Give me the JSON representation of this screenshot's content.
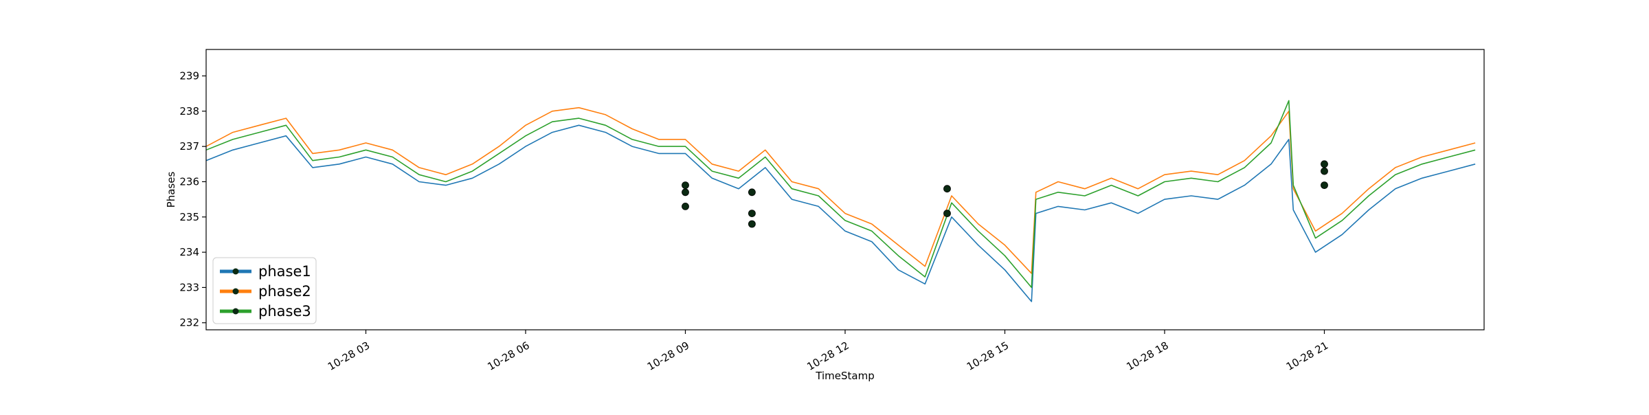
{
  "chart_data": {
    "type": "line",
    "xlabel": "TimeStamp",
    "ylabel": "Phases",
    "x_start": "10-28 00:00",
    "x_end": "10-28 24:00",
    "x_ticks": [
      {
        "t": "10-28 03:00",
        "label": "10-28 03"
      },
      {
        "t": "10-28 06:00",
        "label": "10-28 06"
      },
      {
        "t": "10-28 09:00",
        "label": "10-28 09"
      },
      {
        "t": "10-28 12:00",
        "label": "10-28 12"
      },
      {
        "t": "10-28 15:00",
        "label": "10-28 15"
      },
      {
        "t": "10-28 18:00",
        "label": "10-28 18"
      },
      {
        "t": "10-28 21:00",
        "label": "10-28 21"
      }
    ],
    "ylim": [
      231.8,
      239.75
    ],
    "y_ticks": [
      232,
      233,
      234,
      235,
      236,
      237,
      238,
      239
    ],
    "grid": false,
    "legend_position": "lower-left",
    "series": [
      {
        "name": "phase1",
        "color": "#1f77b4",
        "points": [
          [
            "10-28 00:00",
            236.6
          ],
          [
            "10-28 00:30",
            236.9
          ],
          [
            "10-28 01:00",
            237.1
          ],
          [
            "10-28 01:30",
            237.3
          ],
          [
            "10-28 02:00",
            236.4
          ],
          [
            "10-28 02:30",
            236.5
          ],
          [
            "10-28 03:00",
            236.7
          ],
          [
            "10-28 03:30",
            236.5
          ],
          [
            "10-28 04:00",
            236.0
          ],
          [
            "10-28 04:30",
            235.9
          ],
          [
            "10-28 05:00",
            236.1
          ],
          [
            "10-28 05:30",
            236.5
          ],
          [
            "10-28 06:00",
            237.0
          ],
          [
            "10-28 06:30",
            237.4
          ],
          [
            "10-28 07:00",
            237.6
          ],
          [
            "10-28 07:30",
            237.4
          ],
          [
            "10-28 08:00",
            237.0
          ],
          [
            "10-28 08:30",
            236.8
          ],
          [
            "10-28 09:00",
            236.8
          ],
          [
            "10-28 09:30",
            236.1
          ],
          [
            "10-28 10:00",
            235.8
          ],
          [
            "10-28 10:30",
            236.4
          ],
          [
            "10-28 11:00",
            235.5
          ],
          [
            "10-28 11:30",
            235.3
          ],
          [
            "10-28 12:00",
            234.6
          ],
          [
            "10-28 12:30",
            234.3
          ],
          [
            "10-28 13:00",
            233.5
          ],
          [
            "10-28 13:30",
            233.1
          ],
          [
            "10-28 14:00",
            235.0
          ],
          [
            "10-28 14:30",
            234.2
          ],
          [
            "10-28 15:00",
            233.5
          ],
          [
            "10-28 15:30",
            232.6
          ],
          [
            "10-28 15:35",
            235.1
          ],
          [
            "10-28 16:00",
            235.3
          ],
          [
            "10-28 16:30",
            235.2
          ],
          [
            "10-28 17:00",
            235.4
          ],
          [
            "10-28 17:30",
            235.1
          ],
          [
            "10-28 18:00",
            235.5
          ],
          [
            "10-28 18:30",
            235.6
          ],
          [
            "10-28 19:00",
            235.5
          ],
          [
            "10-28 19:30",
            235.9
          ],
          [
            "10-28 20:00",
            236.5
          ],
          [
            "10-28 20:20",
            237.2
          ],
          [
            "10-28 20:25",
            235.2
          ],
          [
            "10-28 20:50",
            234.0
          ],
          [
            "10-28 21:20",
            234.5
          ],
          [
            "10-28 21:50",
            235.2
          ],
          [
            "10-28 22:20",
            235.8
          ],
          [
            "10-28 22:50",
            236.1
          ],
          [
            "10-28 23:20",
            236.3
          ],
          [
            "10-28 23:50",
            236.5
          ]
        ]
      },
      {
        "name": "phase2",
        "color": "#ff7f0e",
        "points": [
          [
            "10-28 00:00",
            237.0
          ],
          [
            "10-28 00:30",
            237.4
          ],
          [
            "10-28 01:00",
            237.6
          ],
          [
            "10-28 01:30",
            237.8
          ],
          [
            "10-28 02:00",
            236.8
          ],
          [
            "10-28 02:30",
            236.9
          ],
          [
            "10-28 03:00",
            237.1
          ],
          [
            "10-28 03:30",
            236.9
          ],
          [
            "10-28 04:00",
            236.4
          ],
          [
            "10-28 04:30",
            236.2
          ],
          [
            "10-28 05:00",
            236.5
          ],
          [
            "10-28 05:30",
            237.0
          ],
          [
            "10-28 06:00",
            237.6
          ],
          [
            "10-28 06:30",
            238.0
          ],
          [
            "10-28 07:00",
            238.1
          ],
          [
            "10-28 07:30",
            237.9
          ],
          [
            "10-28 08:00",
            237.5
          ],
          [
            "10-28 08:30",
            237.2
          ],
          [
            "10-28 09:00",
            237.2
          ],
          [
            "10-28 09:30",
            236.5
          ],
          [
            "10-28 10:00",
            236.3
          ],
          [
            "10-28 10:30",
            236.9
          ],
          [
            "10-28 11:00",
            236.0
          ],
          [
            "10-28 11:30",
            235.8
          ],
          [
            "10-28 12:00",
            235.1
          ],
          [
            "10-28 12:30",
            234.8
          ],
          [
            "10-28 13:00",
            234.2
          ],
          [
            "10-28 13:30",
            233.6
          ],
          [
            "10-28 14:00",
            235.6
          ],
          [
            "10-28 14:30",
            234.8
          ],
          [
            "10-28 15:00",
            234.2
          ],
          [
            "10-28 15:30",
            233.4
          ],
          [
            "10-28 15:35",
            235.7
          ],
          [
            "10-28 16:00",
            236.0
          ],
          [
            "10-28 16:30",
            235.8
          ],
          [
            "10-28 17:00",
            236.1
          ],
          [
            "10-28 17:30",
            235.8
          ],
          [
            "10-28 18:00",
            236.2
          ],
          [
            "10-28 18:30",
            236.3
          ],
          [
            "10-28 19:00",
            236.2
          ],
          [
            "10-28 19:30",
            236.6
          ],
          [
            "10-28 20:00",
            237.3
          ],
          [
            "10-28 20:20",
            238.0
          ],
          [
            "10-28 20:25",
            235.8
          ],
          [
            "10-28 20:50",
            234.6
          ],
          [
            "10-28 21:20",
            235.1
          ],
          [
            "10-28 21:50",
            235.8
          ],
          [
            "10-28 22:20",
            236.4
          ],
          [
            "10-28 22:50",
            236.7
          ],
          [
            "10-28 23:20",
            236.9
          ],
          [
            "10-28 23:50",
            237.1
          ]
        ]
      },
      {
        "name": "phase3",
        "color": "#2ca02c",
        "points": [
          [
            "10-28 00:00",
            236.9
          ],
          [
            "10-28 00:30",
            237.2
          ],
          [
            "10-28 01:00",
            237.4
          ],
          [
            "10-28 01:30",
            237.6
          ],
          [
            "10-28 02:00",
            236.6
          ],
          [
            "10-28 02:30",
            236.7
          ],
          [
            "10-28 03:00",
            236.9
          ],
          [
            "10-28 03:30",
            236.7
          ],
          [
            "10-28 04:00",
            236.2
          ],
          [
            "10-28 04:30",
            236.0
          ],
          [
            "10-28 05:00",
            236.3
          ],
          [
            "10-28 05:30",
            236.8
          ],
          [
            "10-28 06:00",
            237.3
          ],
          [
            "10-28 06:30",
            237.7
          ],
          [
            "10-28 07:00",
            237.8
          ],
          [
            "10-28 07:30",
            237.6
          ],
          [
            "10-28 08:00",
            237.2
          ],
          [
            "10-28 08:30",
            237.0
          ],
          [
            "10-28 09:00",
            237.0
          ],
          [
            "10-28 09:30",
            236.3
          ],
          [
            "10-28 10:00",
            236.1
          ],
          [
            "10-28 10:30",
            236.7
          ],
          [
            "10-28 11:00",
            235.8
          ],
          [
            "10-28 11:30",
            235.6
          ],
          [
            "10-28 12:00",
            234.9
          ],
          [
            "10-28 12:30",
            234.6
          ],
          [
            "10-28 13:00",
            233.9
          ],
          [
            "10-28 13:30",
            233.3
          ],
          [
            "10-28 14:00",
            235.4
          ],
          [
            "10-28 14:30",
            234.6
          ],
          [
            "10-28 15:00",
            233.9
          ],
          [
            "10-28 15:30",
            233.0
          ],
          [
            "10-28 15:35",
            235.5
          ],
          [
            "10-28 16:00",
            235.7
          ],
          [
            "10-28 16:30",
            235.6
          ],
          [
            "10-28 17:00",
            235.9
          ],
          [
            "10-28 17:30",
            235.6
          ],
          [
            "10-28 18:00",
            236.0
          ],
          [
            "10-28 18:30",
            236.1
          ],
          [
            "10-28 19:00",
            236.0
          ],
          [
            "10-28 19:30",
            236.4
          ],
          [
            "10-28 20:00",
            237.1
          ],
          [
            "10-28 20:20",
            238.3
          ],
          [
            "10-28 20:25",
            235.9
          ],
          [
            "10-28 20:50",
            234.4
          ],
          [
            "10-28 21:20",
            234.9
          ],
          [
            "10-28 21:50",
            235.6
          ],
          [
            "10-28 22:20",
            236.2
          ],
          [
            "10-28 22:50",
            236.5
          ],
          [
            "10-28 23:20",
            236.7
          ],
          [
            "10-28 23:50",
            236.9
          ]
        ]
      }
    ],
    "markers": [
      {
        "series": "phase3",
        "x": "10-28 09:00",
        "y": 235.9
      },
      {
        "series": "phase2",
        "x": "10-28 09:00",
        "y": 235.7
      },
      {
        "series": "phase1",
        "x": "10-28 09:00",
        "y": 235.3
      },
      {
        "series": "phase2",
        "x": "10-28 10:15",
        "y": 235.7
      },
      {
        "series": "phase3",
        "x": "10-28 10:15",
        "y": 235.1
      },
      {
        "series": "phase1",
        "x": "10-28 10:15",
        "y": 234.8
      },
      {
        "series": "phase3",
        "x": "10-28 13:55",
        "y": 235.8
      },
      {
        "series": "phase1",
        "x": "10-28 13:55",
        "y": 235.1
      },
      {
        "series": "phase3",
        "x": "10-28 21:00",
        "y": 236.5
      },
      {
        "series": "phase2",
        "x": "10-28 21:00",
        "y": 236.3
      },
      {
        "series": "phase1",
        "x": "10-28 21:00",
        "y": 235.9
      }
    ]
  }
}
